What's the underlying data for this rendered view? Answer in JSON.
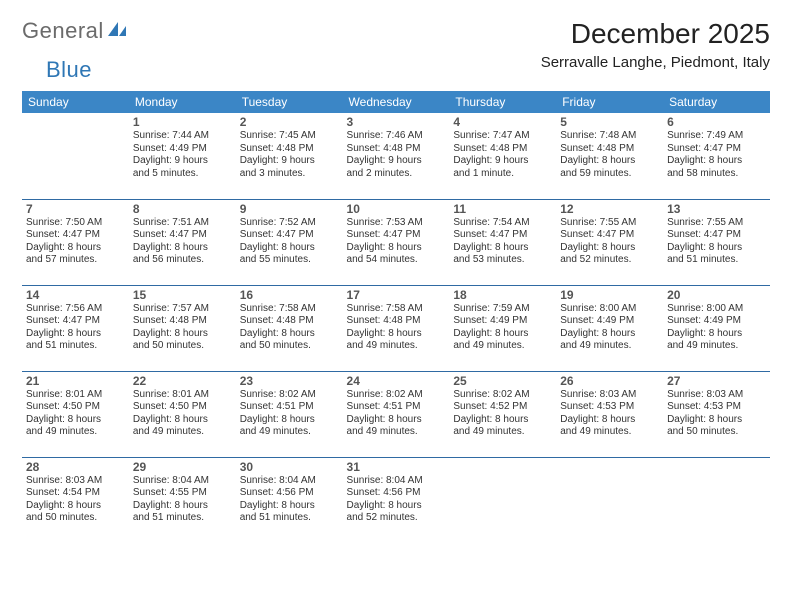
{
  "brand": {
    "word1": "General",
    "word2": "Blue"
  },
  "title": "December 2025",
  "location": "Serravalle Langhe, Piedmont, Italy",
  "colors": {
    "header_bg": "#3b86c6",
    "header_text": "#ffffff",
    "row_border": "#2f6aa3",
    "brand_gray": "#6b6b6b",
    "brand_blue": "#2f77b5"
  },
  "weekdays": [
    "Sunday",
    "Monday",
    "Tuesday",
    "Wednesday",
    "Thursday",
    "Friday",
    "Saturday"
  ],
  "weeks": [
    [
      null,
      {
        "n": "1",
        "sr": "Sunrise: 7:44 AM",
        "ss": "Sunset: 4:49 PM",
        "d1": "Daylight: 9 hours",
        "d2": "and 5 minutes."
      },
      {
        "n": "2",
        "sr": "Sunrise: 7:45 AM",
        "ss": "Sunset: 4:48 PM",
        "d1": "Daylight: 9 hours",
        "d2": "and 3 minutes."
      },
      {
        "n": "3",
        "sr": "Sunrise: 7:46 AM",
        "ss": "Sunset: 4:48 PM",
        "d1": "Daylight: 9 hours",
        "d2": "and 2 minutes."
      },
      {
        "n": "4",
        "sr": "Sunrise: 7:47 AM",
        "ss": "Sunset: 4:48 PM",
        "d1": "Daylight: 9 hours",
        "d2": "and 1 minute."
      },
      {
        "n": "5",
        "sr": "Sunrise: 7:48 AM",
        "ss": "Sunset: 4:48 PM",
        "d1": "Daylight: 8 hours",
        "d2": "and 59 minutes."
      },
      {
        "n": "6",
        "sr": "Sunrise: 7:49 AM",
        "ss": "Sunset: 4:47 PM",
        "d1": "Daylight: 8 hours",
        "d2": "and 58 minutes."
      }
    ],
    [
      {
        "n": "7",
        "sr": "Sunrise: 7:50 AM",
        "ss": "Sunset: 4:47 PM",
        "d1": "Daylight: 8 hours",
        "d2": "and 57 minutes."
      },
      {
        "n": "8",
        "sr": "Sunrise: 7:51 AM",
        "ss": "Sunset: 4:47 PM",
        "d1": "Daylight: 8 hours",
        "d2": "and 56 minutes."
      },
      {
        "n": "9",
        "sr": "Sunrise: 7:52 AM",
        "ss": "Sunset: 4:47 PM",
        "d1": "Daylight: 8 hours",
        "d2": "and 55 minutes."
      },
      {
        "n": "10",
        "sr": "Sunrise: 7:53 AM",
        "ss": "Sunset: 4:47 PM",
        "d1": "Daylight: 8 hours",
        "d2": "and 54 minutes."
      },
      {
        "n": "11",
        "sr": "Sunrise: 7:54 AM",
        "ss": "Sunset: 4:47 PM",
        "d1": "Daylight: 8 hours",
        "d2": "and 53 minutes."
      },
      {
        "n": "12",
        "sr": "Sunrise: 7:55 AM",
        "ss": "Sunset: 4:47 PM",
        "d1": "Daylight: 8 hours",
        "d2": "and 52 minutes."
      },
      {
        "n": "13",
        "sr": "Sunrise: 7:55 AM",
        "ss": "Sunset: 4:47 PM",
        "d1": "Daylight: 8 hours",
        "d2": "and 51 minutes."
      }
    ],
    [
      {
        "n": "14",
        "sr": "Sunrise: 7:56 AM",
        "ss": "Sunset: 4:47 PM",
        "d1": "Daylight: 8 hours",
        "d2": "and 51 minutes."
      },
      {
        "n": "15",
        "sr": "Sunrise: 7:57 AM",
        "ss": "Sunset: 4:48 PM",
        "d1": "Daylight: 8 hours",
        "d2": "and 50 minutes."
      },
      {
        "n": "16",
        "sr": "Sunrise: 7:58 AM",
        "ss": "Sunset: 4:48 PM",
        "d1": "Daylight: 8 hours",
        "d2": "and 50 minutes."
      },
      {
        "n": "17",
        "sr": "Sunrise: 7:58 AM",
        "ss": "Sunset: 4:48 PM",
        "d1": "Daylight: 8 hours",
        "d2": "and 49 minutes."
      },
      {
        "n": "18",
        "sr": "Sunrise: 7:59 AM",
        "ss": "Sunset: 4:49 PM",
        "d1": "Daylight: 8 hours",
        "d2": "and 49 minutes."
      },
      {
        "n": "19",
        "sr": "Sunrise: 8:00 AM",
        "ss": "Sunset: 4:49 PM",
        "d1": "Daylight: 8 hours",
        "d2": "and 49 minutes."
      },
      {
        "n": "20",
        "sr": "Sunrise: 8:00 AM",
        "ss": "Sunset: 4:49 PM",
        "d1": "Daylight: 8 hours",
        "d2": "and 49 minutes."
      }
    ],
    [
      {
        "n": "21",
        "sr": "Sunrise: 8:01 AM",
        "ss": "Sunset: 4:50 PM",
        "d1": "Daylight: 8 hours",
        "d2": "and 49 minutes."
      },
      {
        "n": "22",
        "sr": "Sunrise: 8:01 AM",
        "ss": "Sunset: 4:50 PM",
        "d1": "Daylight: 8 hours",
        "d2": "and 49 minutes."
      },
      {
        "n": "23",
        "sr": "Sunrise: 8:02 AM",
        "ss": "Sunset: 4:51 PM",
        "d1": "Daylight: 8 hours",
        "d2": "and 49 minutes."
      },
      {
        "n": "24",
        "sr": "Sunrise: 8:02 AM",
        "ss": "Sunset: 4:51 PM",
        "d1": "Daylight: 8 hours",
        "d2": "and 49 minutes."
      },
      {
        "n": "25",
        "sr": "Sunrise: 8:02 AM",
        "ss": "Sunset: 4:52 PM",
        "d1": "Daylight: 8 hours",
        "d2": "and 49 minutes."
      },
      {
        "n": "26",
        "sr": "Sunrise: 8:03 AM",
        "ss": "Sunset: 4:53 PM",
        "d1": "Daylight: 8 hours",
        "d2": "and 49 minutes."
      },
      {
        "n": "27",
        "sr": "Sunrise: 8:03 AM",
        "ss": "Sunset: 4:53 PM",
        "d1": "Daylight: 8 hours",
        "d2": "and 50 minutes."
      }
    ],
    [
      {
        "n": "28",
        "sr": "Sunrise: 8:03 AM",
        "ss": "Sunset: 4:54 PM",
        "d1": "Daylight: 8 hours",
        "d2": "and 50 minutes."
      },
      {
        "n": "29",
        "sr": "Sunrise: 8:04 AM",
        "ss": "Sunset: 4:55 PM",
        "d1": "Daylight: 8 hours",
        "d2": "and 51 minutes."
      },
      {
        "n": "30",
        "sr": "Sunrise: 8:04 AM",
        "ss": "Sunset: 4:56 PM",
        "d1": "Daylight: 8 hours",
        "d2": "and 51 minutes."
      },
      {
        "n": "31",
        "sr": "Sunrise: 8:04 AM",
        "ss": "Sunset: 4:56 PM",
        "d1": "Daylight: 8 hours",
        "d2": "and 52 minutes."
      },
      null,
      null,
      null
    ]
  ]
}
